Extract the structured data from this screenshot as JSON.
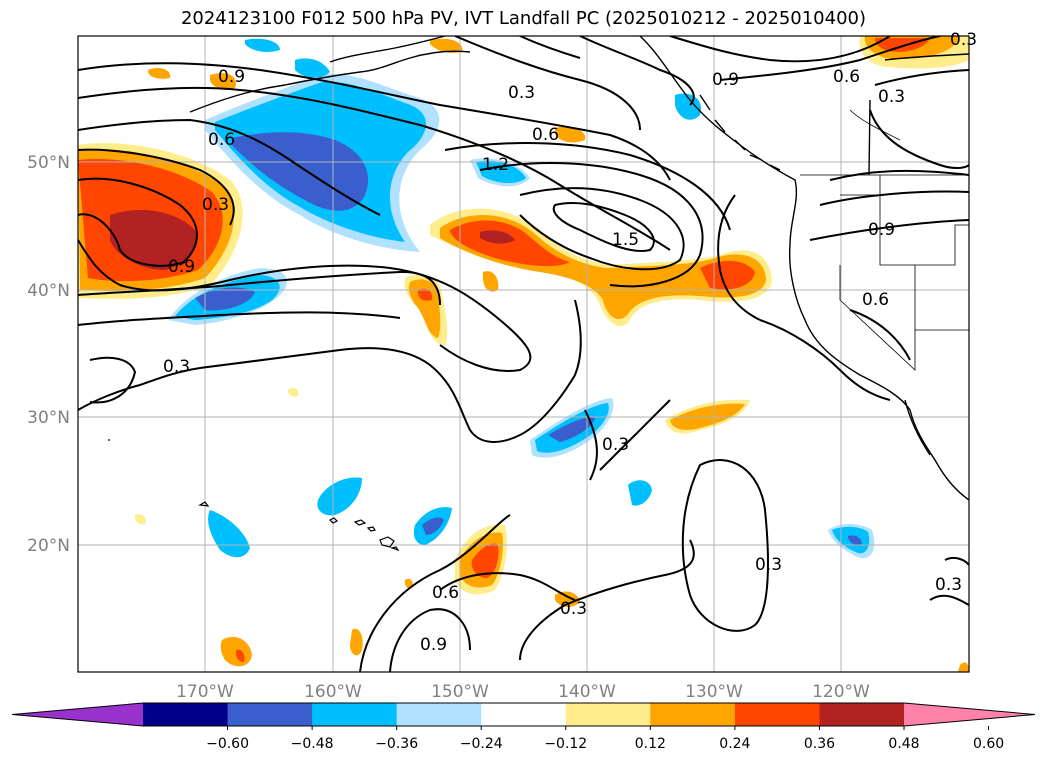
{
  "title": "2024123100 F012 500 hPa PV, IVT Landfall PC (2025010212 - 2025010400)",
  "axes": {
    "x_ticks": [
      "170°W",
      "160°W",
      "150°W",
      "140°W",
      "130°W",
      "120°W"
    ],
    "y_ticks": [
      "50°N",
      "40°N",
      "30°N",
      "20°N"
    ]
  },
  "colorbar": {
    "ticks": [
      "−0.60",
      "−0.48",
      "−0.36",
      "−0.24",
      "−0.12",
      "0.12",
      "0.24",
      "0.36",
      "0.48",
      "0.60"
    ],
    "colors": [
      "#9932cc",
      "#00008b",
      "#3a5fcd",
      "#00bfff",
      "#b0e2ff",
      "#ffffff",
      "#ffec8b",
      "#ffa500",
      "#ff4500",
      "#b22222",
      "#ff82ab"
    ]
  },
  "contour_labels": [
    "0.9",
    "0.3",
    "0.6",
    "0.9",
    "0.6",
    "0.3",
    "0.6",
    "0.3",
    "1.2",
    "1.5",
    "0.9",
    "0.9",
    "0.6",
    "0.3",
    "0.3",
    "0.3",
    "0.3",
    "0.6",
    "0.3",
    "0.9",
    "0.3"
  ]
}
